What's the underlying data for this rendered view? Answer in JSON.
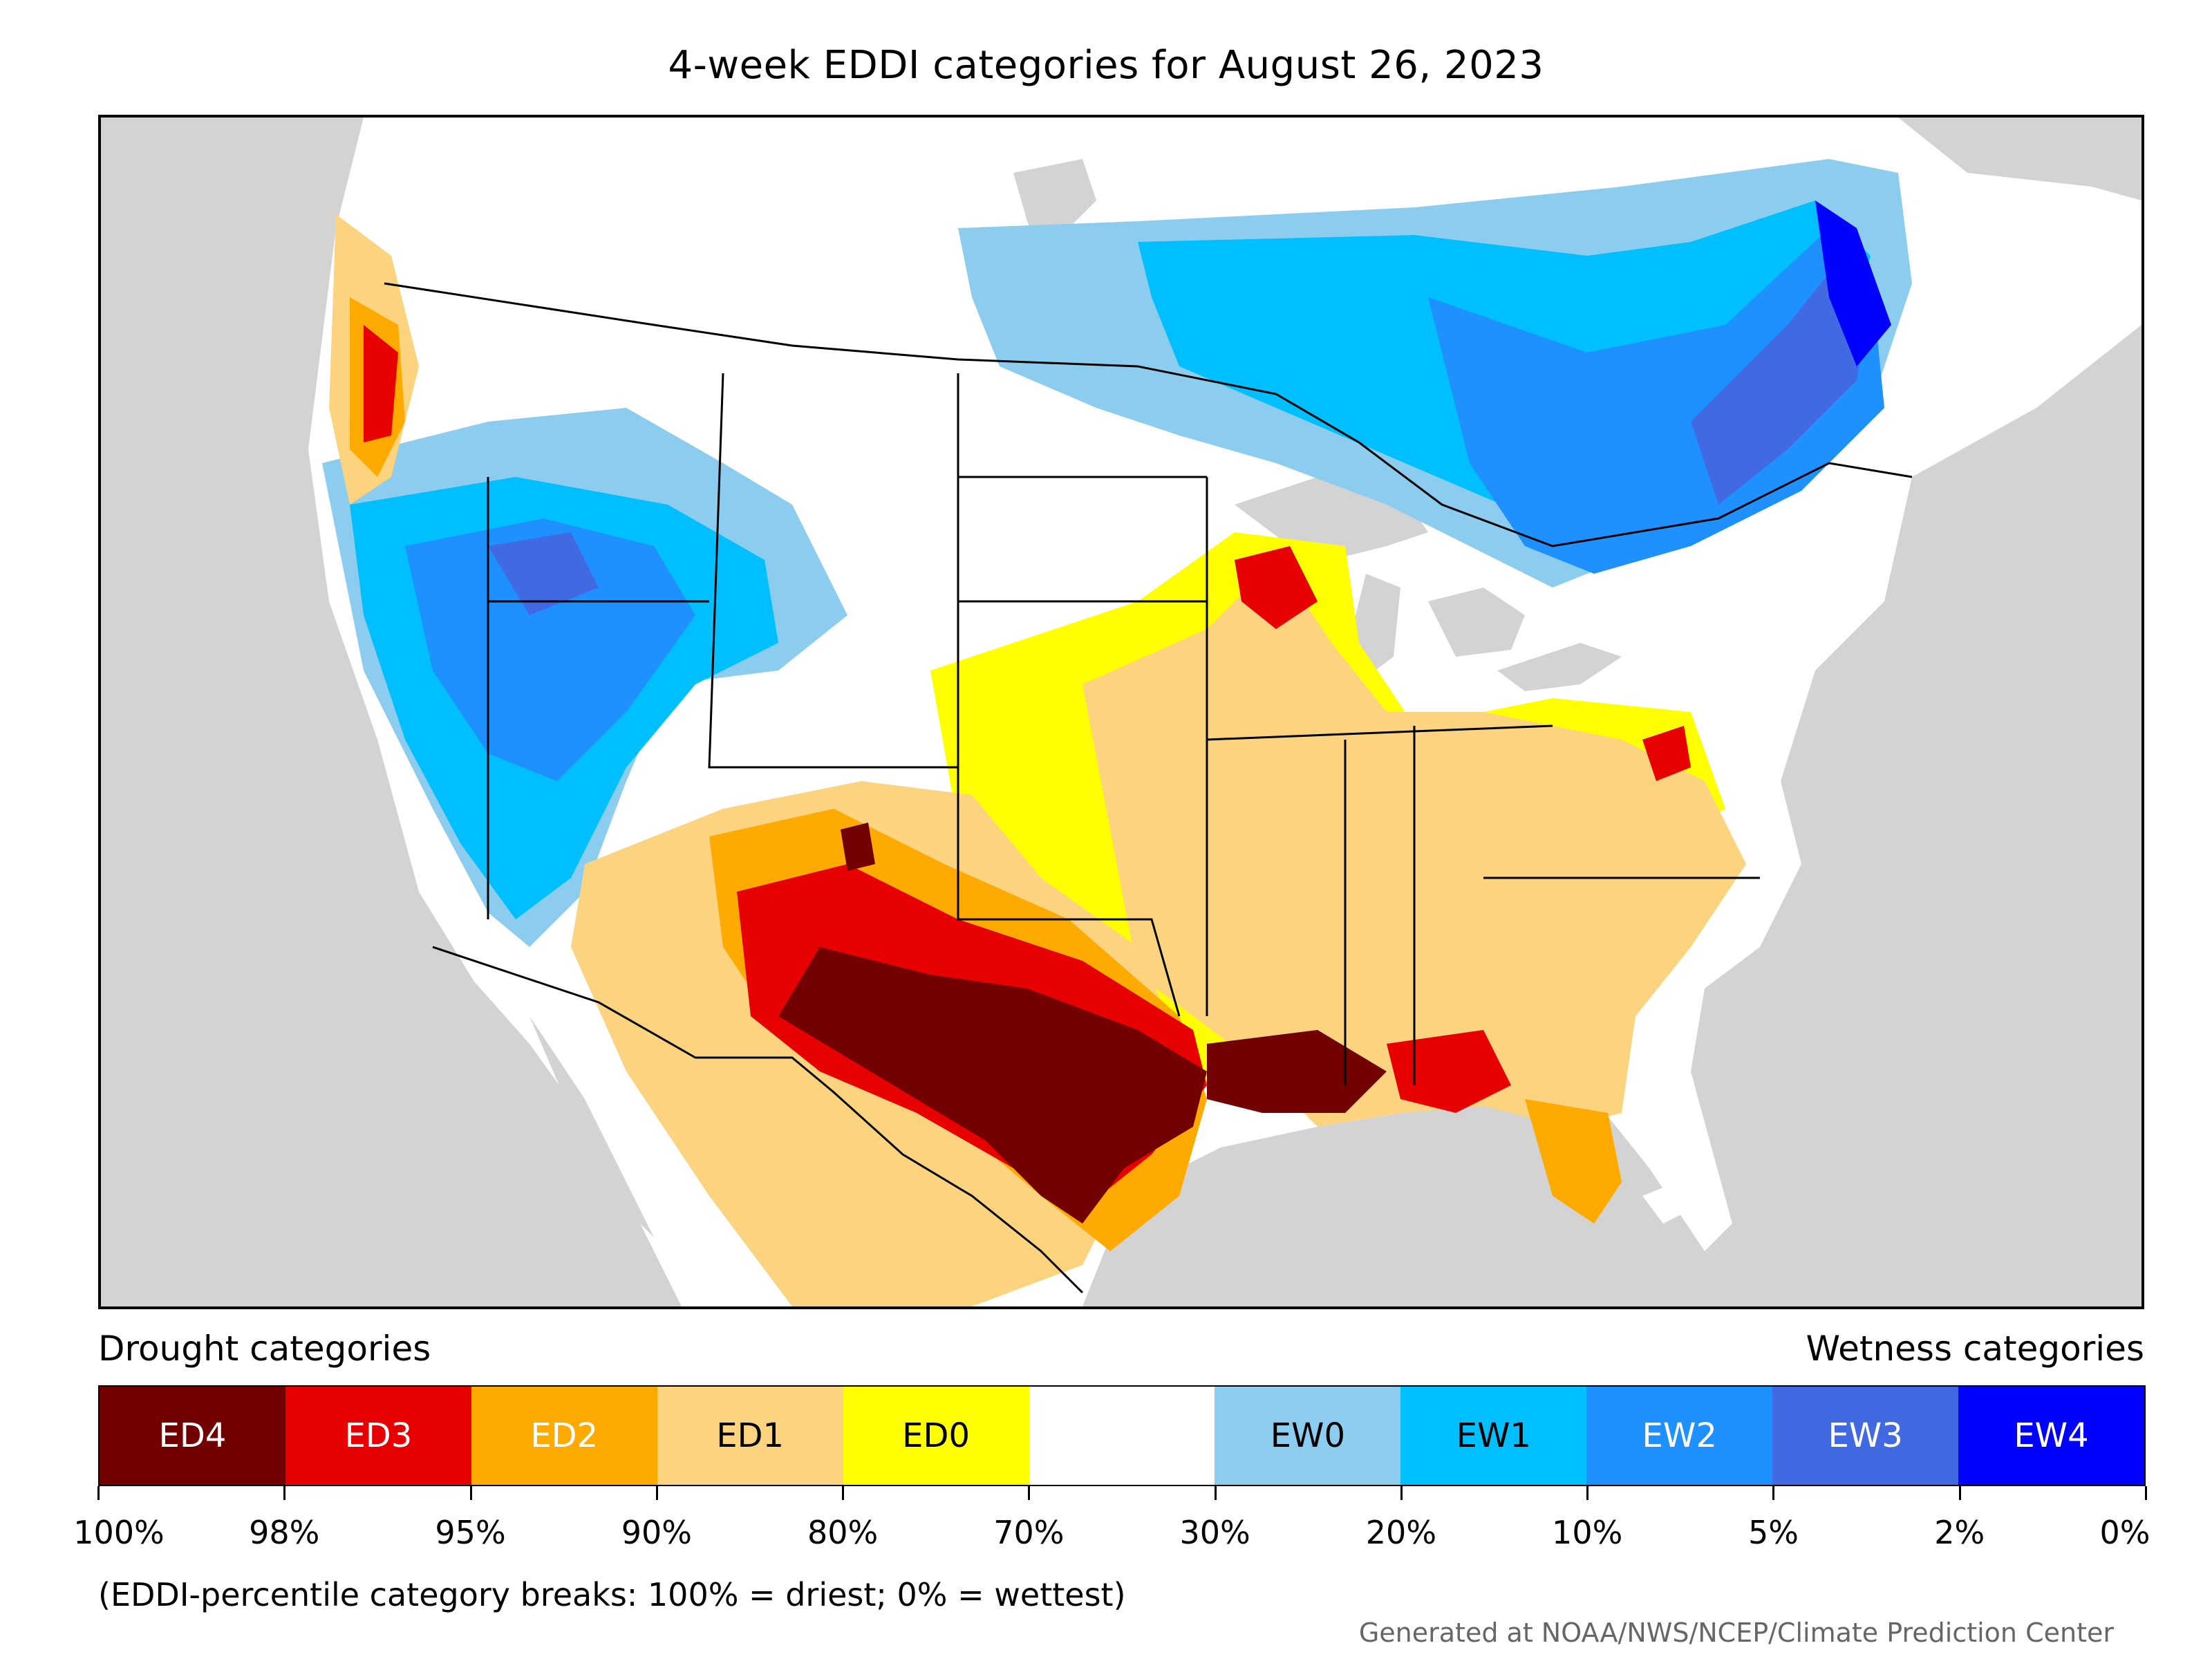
{
  "title": "4-week EDDI categories for August 26, 2023",
  "legend": {
    "drought_heading": "Drought categories",
    "wetness_heading": "Wetness categories",
    "categories": [
      {
        "label": "ED4",
        "color": "#730000",
        "text_color": "#ffffff"
      },
      {
        "label": "ED3",
        "color": "#e60000",
        "text_color": "#ffffff"
      },
      {
        "label": "ED2",
        "color": "#ffaa00",
        "text_color": "#ffffff"
      },
      {
        "label": "ED1",
        "color": "#fcd37f",
        "text_color": "#000000"
      },
      {
        "label": "ED0",
        "color": "#ffff00",
        "text_color": "#000000"
      },
      {
        "label": "",
        "color": "#ffffff",
        "text_color": "#000000"
      },
      {
        "label": "EW0",
        "color": "#8ccdef",
        "text_color": "#000000"
      },
      {
        "label": "EW1",
        "color": "#00bfff",
        "text_color": "#000000"
      },
      {
        "label": "EW2",
        "color": "#1e90ff",
        "text_color": "#ffffff"
      },
      {
        "label": "EW3",
        "color": "#4169e1",
        "text_color": "#ffffff"
      },
      {
        "label": "EW4",
        "color": "#0000ff",
        "text_color": "#ffffff"
      }
    ],
    "breaks": [
      "100%",
      "98%",
      "95%",
      "90%",
      "80%",
      "70%",
      "30%",
      "20%",
      "10%",
      "5%",
      "2%",
      "0%"
    ]
  },
  "note": "(EDDI-percentile category breaks: 100% = driest; 0% = wettest)",
  "credit": "Generated at NOAA/NWS/NCEP/Climate Prediction Center",
  "colors": {
    "ocean": "#d3d3d3",
    "land": "#ffffff",
    "ED4": "#730000",
    "ED3": "#e60000",
    "ED2": "#ffaa00",
    "ED1": "#fcd37f",
    "ED0": "#ffff00",
    "EW0": "#8ccdef",
    "EW1": "#00bfff",
    "EW2": "#1e90ff",
    "EW3": "#4169e1",
    "EW4": "#0000ff"
  }
}
